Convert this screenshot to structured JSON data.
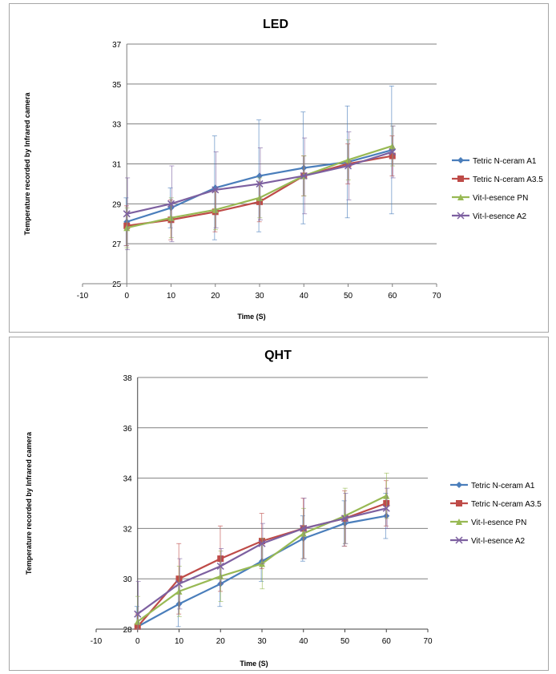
{
  "charts": [
    {
      "type": "line",
      "title": "LED",
      "xlabel": "Time (S)",
      "ylabel": "Temperature recorded by Infrared camera",
      "xlim": [
        -10,
        70
      ],
      "ylim": [
        25,
        37
      ],
      "xticks": [
        -10,
        0,
        10,
        20,
        30,
        40,
        50,
        60,
        70
      ],
      "yticks": [
        25,
        27,
        29,
        31,
        33,
        35,
        37
      ],
      "grid": true,
      "legend_position": "right",
      "x": [
        0,
        10,
        20,
        30,
        40,
        50,
        60
      ],
      "series": [
        {
          "name": "Tetric N-ceram A1",
          "color": "#4a7ebb",
          "marker": "diamond",
          "values": [
            28.1,
            28.8,
            29.8,
            30.4,
            30.8,
            31.1,
            31.7
          ],
          "errors": [
            1.2,
            1.0,
            2.6,
            2.8,
            2.8,
            2.8,
            3.2
          ]
        },
        {
          "name": "Tetric N-ceram A3.5",
          "color": "#be4b48",
          "marker": "square",
          "values": [
            27.9,
            28.2,
            28.6,
            29.1,
            30.4,
            31.0,
            31.4
          ],
          "errors": [
            1.0,
            1.0,
            1.0,
            1.0,
            1.0,
            1.0,
            1.0
          ]
        },
        {
          "name": "Vit-l-esence PN",
          "color": "#98b954",
          "marker": "triangle",
          "values": [
            27.8,
            28.3,
            28.7,
            29.3,
            30.4,
            31.2,
            31.9
          ],
          "errors": [
            1.0,
            1.0,
            1.0,
            1.0,
            1.0,
            1.0,
            1.0
          ]
        },
        {
          "name": "Vit-l-esence A2",
          "color": "#7d60a0",
          "marker": "x",
          "values": [
            28.5,
            29.0,
            29.7,
            30.0,
            30.4,
            30.9,
            31.6
          ],
          "errors": [
            1.8,
            1.9,
            1.9,
            1.8,
            1.9,
            1.7,
            1.3
          ]
        }
      ]
    },
    {
      "type": "line",
      "title": "QHT",
      "xlabel": "Time (S)",
      "ylabel": "Temperature  recorded by Infrared camera",
      "xlim": [
        -10,
        70
      ],
      "ylim": [
        28,
        38
      ],
      "xticks": [
        -10,
        0,
        10,
        20,
        30,
        40,
        50,
        60,
        70
      ],
      "yticks": [
        28,
        30,
        32,
        34,
        36,
        38
      ],
      "grid": true,
      "legend_position": "right",
      "x": [
        0,
        10,
        20,
        30,
        40,
        50,
        60
      ],
      "series": [
        {
          "name": "Tetric N-ceram A1",
          "color": "#4a7ebb",
          "marker": "diamond",
          "values": [
            28.1,
            29.0,
            29.8,
            30.7,
            31.6,
            32.2,
            32.5
          ],
          "errors": [
            0.8,
            0.9,
            0.9,
            0.8,
            0.9,
            0.9,
            0.9
          ]
        },
        {
          "name": "Tetric N-ceram A3.5",
          "color": "#be4b48",
          "marker": "square",
          "values": [
            28.1,
            30.0,
            30.8,
            31.5,
            32.0,
            32.4,
            33.0
          ],
          "errors": [
            0.5,
            1.4,
            1.3,
            1.1,
            1.2,
            1.1,
            0.9
          ]
        },
        {
          "name": "Vit-l-esence PN",
          "color": "#98b954",
          "marker": "triangle",
          "values": [
            28.3,
            29.5,
            30.1,
            30.6,
            31.8,
            32.5,
            33.3
          ],
          "errors": [
            1.0,
            1.0,
            1.0,
            1.0,
            1.0,
            1.1,
            0.9
          ]
        },
        {
          "name": "Vit-l-esence A2",
          "color": "#7d60a0",
          "marker": "x",
          "values": [
            28.6,
            29.8,
            30.5,
            31.4,
            32.0,
            32.4,
            32.8
          ],
          "errors": [
            1.3,
            1.0,
            0.7,
            0.8,
            1.2,
            1.0,
            0.8
          ]
        }
      ]
    }
  ]
}
